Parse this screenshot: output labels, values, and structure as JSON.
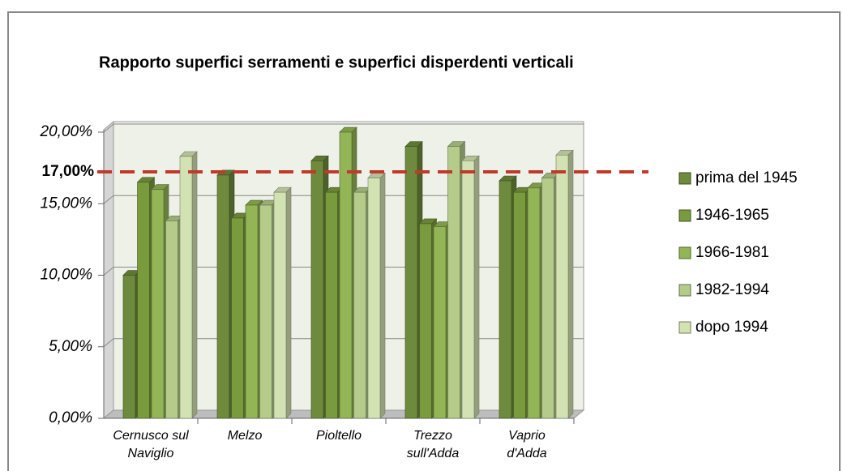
{
  "chart_data": {
    "type": "bar3d",
    "title": "Rapporto superfici serramenti e superfici disperdenti verticali",
    "categories": [
      [
        "Cernusco sul",
        "Naviglio"
      ],
      [
        "Melzo"
      ],
      [
        "Pioltello"
      ],
      [
        "Trezzo",
        "sull'Adda"
      ],
      [
        "Vaprio",
        "d'Adda"
      ]
    ],
    "series": [
      {
        "name": "prima del 1945",
        "color": "#6e8b3d",
        "values": [
          10.0,
          17.0,
          18.0,
          19.0,
          16.6
        ]
      },
      {
        "name": "1946-1965",
        "color": "#7a9a3e",
        "values": [
          16.5,
          14.0,
          15.8,
          13.6,
          15.8
        ]
      },
      {
        "name": "1966-1981",
        "color": "#93b556",
        "values": [
          16.0,
          14.9,
          20.0,
          13.4,
          16.1
        ]
      },
      {
        "name": "1982-1994",
        "color": "#b4cb8a",
        "values": [
          13.8,
          14.9,
          15.8,
          19.0,
          16.8
        ]
      },
      {
        "name": "dopo 1994",
        "color": "#d3e2b3",
        "values": [
          18.3,
          15.8,
          16.8,
          18.0,
          18.4
        ]
      }
    ],
    "ylim": [
      0,
      20
    ],
    "yticks": [
      {
        "value": 0,
        "label": "0,00%"
      },
      {
        "value": 5,
        "label": "5,00%"
      },
      {
        "value": 10,
        "label": "10,00%"
      },
      {
        "value": 15,
        "label": "15,00%"
      },
      {
        "value": 20,
        "label": "20,00%"
      }
    ],
    "reference_line": {
      "value": 17,
      "label": "17,00%",
      "color": "#c0392b"
    },
    "grid": true,
    "legend": "right"
  }
}
